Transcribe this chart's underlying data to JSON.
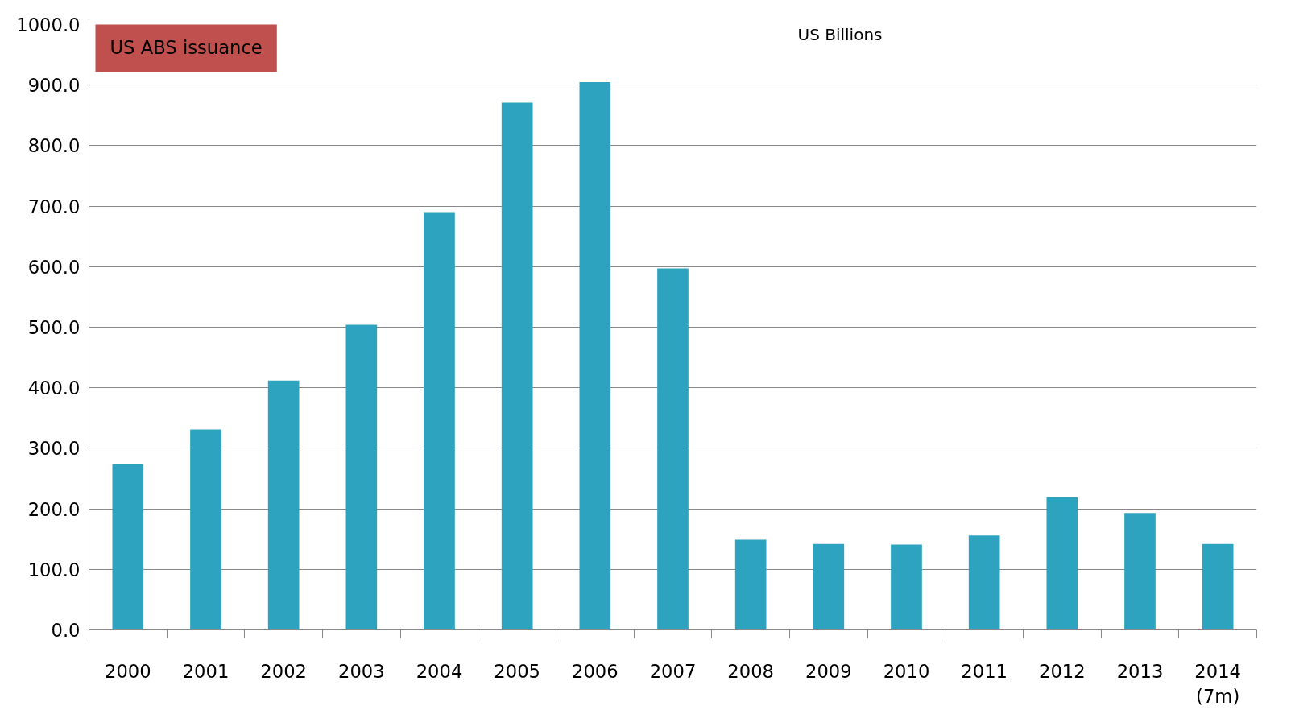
{
  "chart_data": {
    "type": "bar",
    "title": "US ABS issuance",
    "annotations": [
      "US Billions"
    ],
    "categories": [
      "2000",
      "2001",
      "2002",
      "2003",
      "2004",
      "2005",
      "2006",
      "2007",
      "2008",
      "2009",
      "2010",
      "2011",
      "2012",
      "2013",
      "2014\n(7m)"
    ],
    "values": [
      274,
      331,
      412,
      504,
      690,
      871,
      905,
      597,
      149,
      142,
      141,
      156,
      219,
      193,
      142
    ],
    "color": "#2ea3bf",
    "ylim": [
      0,
      1000
    ],
    "yticks": [
      {
        "value": 0,
        "label": "0.0"
      },
      {
        "value": 100,
        "label": "100.0"
      },
      {
        "value": 200,
        "label": "200.0"
      },
      {
        "value": 300,
        "label": "300.0"
      },
      {
        "value": 400,
        "label": "400.0"
      },
      {
        "value": 500,
        "label": "500.0"
      },
      {
        "value": 600,
        "label": "600.0"
      },
      {
        "value": 700,
        "label": "700.0"
      },
      {
        "value": 800,
        "label": "800.0"
      },
      {
        "value": 900,
        "label": "900.0"
      },
      {
        "value": 1000,
        "label": "1000.0"
      }
    ],
    "grid": "y"
  }
}
